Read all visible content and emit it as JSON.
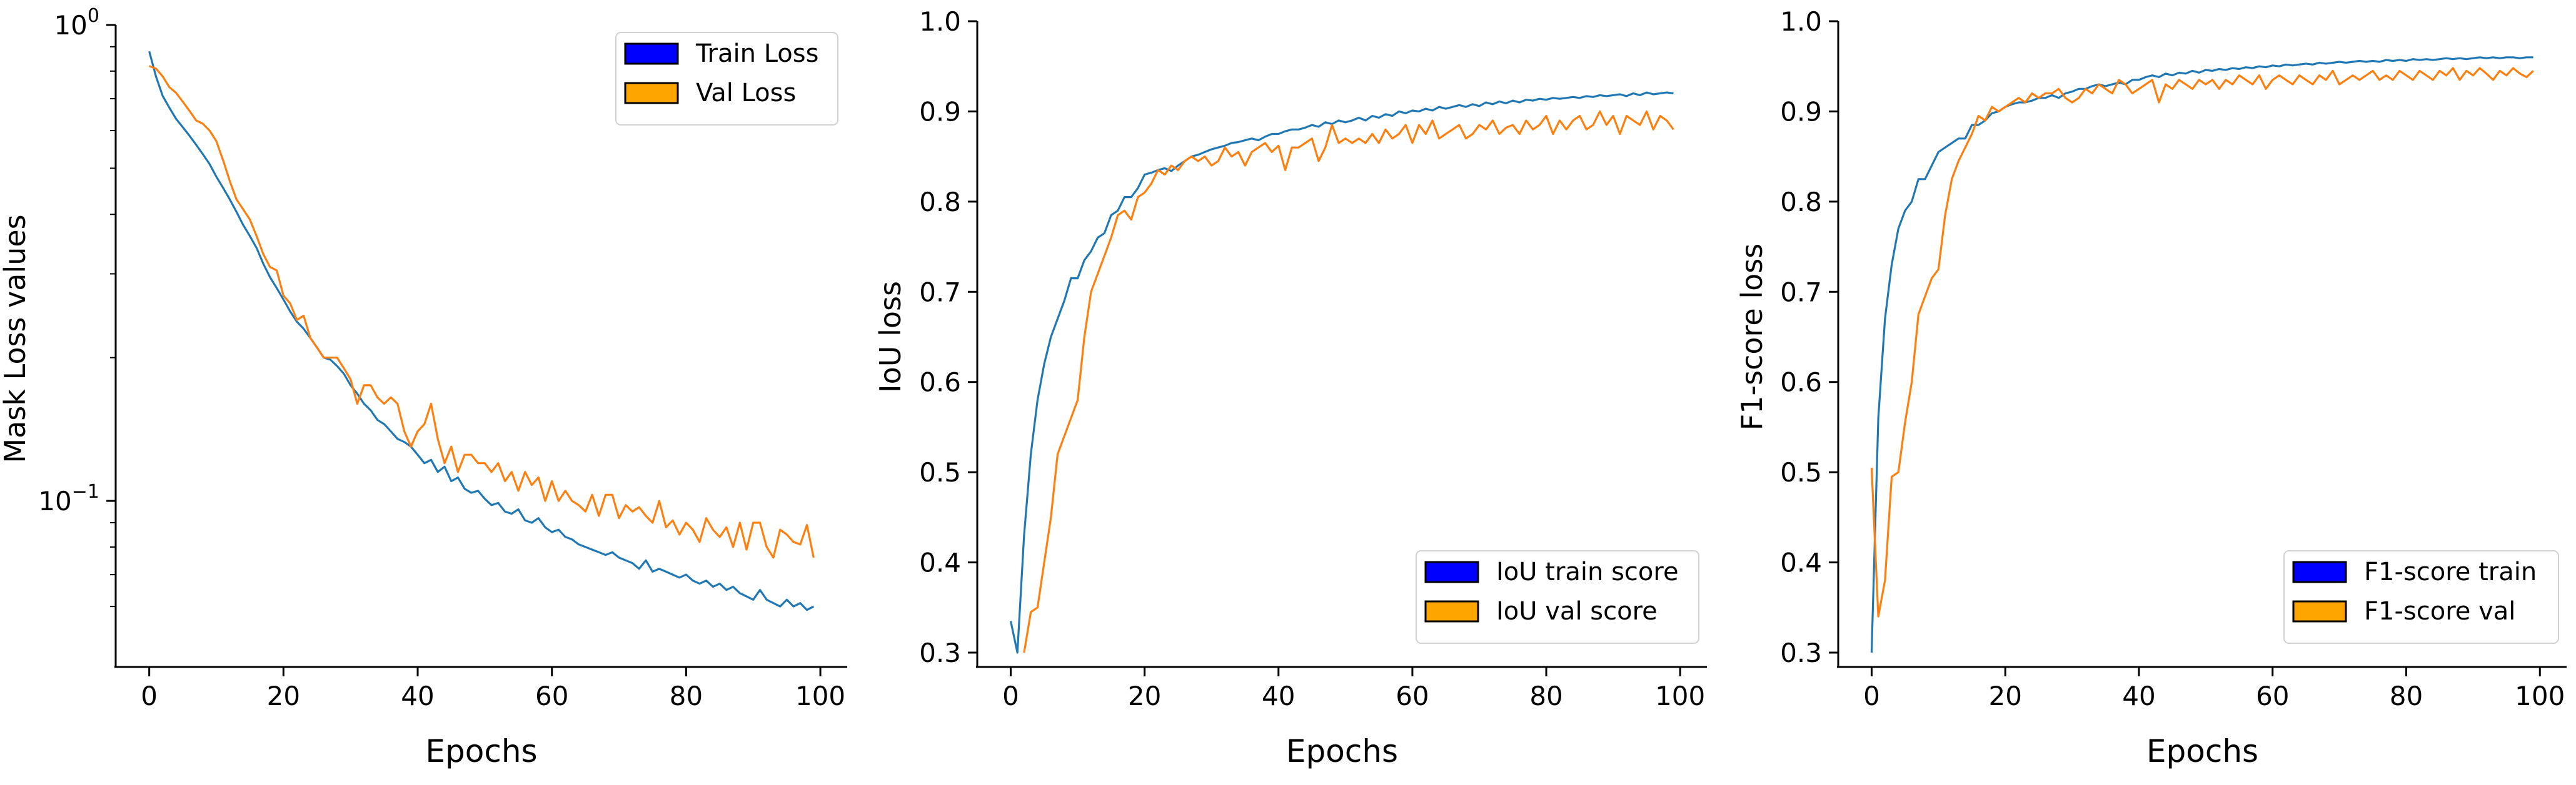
{
  "chart_data": [
    {
      "type": "line",
      "yscale": "log",
      "xlabel": "Epochs",
      "ylabel": "Mask Loss values",
      "xlim": [
        -5,
        104
      ],
      "ylim": [
        0.048,
        1.0
      ],
      "xticks": [
        0,
        20,
        40,
        60,
        80,
        100
      ],
      "xtick_labels": [
        "0",
        "20",
        "40",
        "60",
        "80",
        "100"
      ],
      "yticks": [
        1.0,
        0.1
      ],
      "ytick_labels": [
        {
          "base": "10",
          "exp": "0"
        },
        {
          "base": "10",
          "exp": "−1"
        }
      ],
      "grid": false,
      "legend": {
        "position": "top-right"
      },
      "series": [
        {
          "name": "Train Loss",
          "color": "#1f77b4",
          "legend_color": "#0000ff",
          "x_start": 0,
          "values": [
            0.88,
            0.78,
            0.71,
            0.67,
            0.635,
            0.61,
            0.585,
            0.56,
            0.535,
            0.51,
            0.48,
            0.455,
            0.43,
            0.405,
            0.38,
            0.36,
            0.34,
            0.315,
            0.295,
            0.28,
            0.265,
            0.25,
            0.238,
            0.23,
            0.22,
            0.21,
            0.2,
            0.198,
            0.192,
            0.185,
            0.175,
            0.168,
            0.16,
            0.155,
            0.148,
            0.145,
            0.14,
            0.135,
            0.133,
            0.13,
            0.125,
            0.12,
            0.122,
            0.115,
            0.118,
            0.11,
            0.112,
            0.106,
            0.104,
            0.105,
            0.101,
            0.098,
            0.099,
            0.095,
            0.094,
            0.096,
            0.091,
            0.09,
            0.092,
            0.088,
            0.086,
            0.087,
            0.084,
            0.083,
            0.081,
            0.08,
            0.079,
            0.078,
            0.077,
            0.078,
            0.076,
            0.075,
            0.074,
            0.072,
            0.075,
            0.071,
            0.072,
            0.071,
            0.07,
            0.069,
            0.07,
            0.068,
            0.067,
            0.068,
            0.066,
            0.067,
            0.065,
            0.066,
            0.064,
            0.063,
            0.062,
            0.065,
            0.062,
            0.061,
            0.06,
            0.062,
            0.06,
            0.061,
            0.059,
            0.06
          ]
        },
        {
          "name": "Val Loss",
          "color": "#ff7f0e",
          "legend_color": "#ffa500",
          "x_start": 0,
          "values": [
            0.82,
            0.81,
            0.78,
            0.74,
            0.72,
            0.69,
            0.66,
            0.63,
            0.62,
            0.6,
            0.57,
            0.52,
            0.47,
            0.43,
            0.41,
            0.39,
            0.36,
            0.33,
            0.31,
            0.305,
            0.27,
            0.26,
            0.24,
            0.245,
            0.22,
            0.21,
            0.2,
            0.2,
            0.2,
            0.19,
            0.18,
            0.16,
            0.175,
            0.175,
            0.165,
            0.16,
            0.165,
            0.16,
            0.14,
            0.13,
            0.14,
            0.145,
            0.16,
            0.135,
            0.12,
            0.13,
            0.115,
            0.125,
            0.125,
            0.12,
            0.12,
            0.115,
            0.12,
            0.11,
            0.115,
            0.105,
            0.115,
            0.108,
            0.112,
            0.1,
            0.11,
            0.1,
            0.105,
            0.1,
            0.098,
            0.095,
            0.103,
            0.093,
            0.103,
            0.103,
            0.092,
            0.098,
            0.095,
            0.097,
            0.093,
            0.09,
            0.1,
            0.088,
            0.091,
            0.085,
            0.09,
            0.087,
            0.082,
            0.092,
            0.087,
            0.084,
            0.088,
            0.08,
            0.09,
            0.079,
            0.09,
            0.09,
            0.08,
            0.076,
            0.087,
            0.085,
            0.082,
            0.081,
            0.089,
            0.076
          ]
        }
      ]
    },
    {
      "type": "line",
      "xlabel": "Epochs",
      "ylabel": "IoU loss",
      "xlim": [
        -5,
        104
      ],
      "ylim": [
        0.3,
        1.0
      ],
      "xticks": [
        0,
        20,
        40,
        60,
        80,
        100
      ],
      "xtick_labels": [
        "0",
        "20",
        "40",
        "60",
        "80",
        "100"
      ],
      "yticks": [
        0.3,
        0.4,
        0.5,
        0.6,
        0.7,
        0.8,
        0.9,
        1.0
      ],
      "ytick_labels": [
        "0.3",
        "0.4",
        "0.5",
        "0.6",
        "0.7",
        "0.8",
        "0.9",
        "1.0"
      ],
      "grid": false,
      "legend": {
        "position": "bottom-right"
      },
      "series": [
        {
          "name": "IoU train score",
          "color": "#1f77b4",
          "legend_color": "#0000ff",
          "x_start": 0,
          "values": [
            0.335,
            0.3,
            0.43,
            0.52,
            0.58,
            0.62,
            0.65,
            0.67,
            0.69,
            0.715,
            0.715,
            0.735,
            0.745,
            0.76,
            0.765,
            0.785,
            0.79,
            0.805,
            0.805,
            0.815,
            0.83,
            0.832,
            0.835,
            0.837,
            0.834,
            0.84,
            0.845,
            0.85,
            0.852,
            0.855,
            0.858,
            0.86,
            0.862,
            0.865,
            0.866,
            0.868,
            0.87,
            0.868,
            0.872,
            0.875,
            0.875,
            0.878,
            0.88,
            0.88,
            0.882,
            0.885,
            0.883,
            0.888,
            0.886,
            0.89,
            0.888,
            0.89,
            0.893,
            0.89,
            0.895,
            0.893,
            0.897,
            0.895,
            0.9,
            0.898,
            0.901,
            0.9,
            0.903,
            0.901,
            0.905,
            0.903,
            0.905,
            0.907,
            0.905,
            0.908,
            0.906,
            0.91,
            0.908,
            0.911,
            0.909,
            0.912,
            0.91,
            0.913,
            0.912,
            0.914,
            0.913,
            0.915,
            0.914,
            0.915,
            0.916,
            0.915,
            0.917,
            0.916,
            0.918,
            0.917,
            0.918,
            0.919,
            0.917,
            0.92,
            0.918,
            0.921,
            0.919,
            0.92,
            0.921,
            0.92
          ]
        },
        {
          "name": "IoU val score",
          "color": "#ff7f0e",
          "legend_color": "#ffa500",
          "x_start": 2,
          "values": [
            0.3,
            0.345,
            0.35,
            0.4,
            0.45,
            0.52,
            0.54,
            0.56,
            0.58,
            0.65,
            0.7,
            0.72,
            0.74,
            0.76,
            0.785,
            0.79,
            0.78,
            0.805,
            0.81,
            0.82,
            0.835,
            0.83,
            0.84,
            0.835,
            0.845,
            0.85,
            0.845,
            0.85,
            0.84,
            0.845,
            0.86,
            0.85,
            0.855,
            0.84,
            0.855,
            0.86,
            0.865,
            0.855,
            0.862,
            0.835,
            0.86,
            0.86,
            0.865,
            0.87,
            0.845,
            0.86,
            0.885,
            0.865,
            0.87,
            0.865,
            0.87,
            0.865,
            0.875,
            0.865,
            0.88,
            0.87,
            0.875,
            0.885,
            0.865,
            0.885,
            0.875,
            0.89,
            0.87,
            0.875,
            0.88,
            0.885,
            0.87,
            0.875,
            0.885,
            0.88,
            0.89,
            0.875,
            0.882,
            0.885,
            0.875,
            0.89,
            0.88,
            0.885,
            0.895,
            0.875,
            0.89,
            0.88,
            0.89,
            0.895,
            0.88,
            0.885,
            0.9,
            0.885,
            0.895,
            0.875,
            0.895,
            0.89,
            0.885,
            0.9,
            0.88,
            0.895,
            0.89,
            0.88
          ]
        }
      ]
    },
    {
      "type": "line",
      "xlabel": "Epochs",
      "ylabel": "F1-score loss",
      "xlim": [
        -5,
        104
      ],
      "ylim": [
        0.3,
        1.0
      ],
      "xticks": [
        0,
        20,
        40,
        60,
        80,
        100
      ],
      "xtick_labels": [
        "0",
        "20",
        "40",
        "60",
        "80",
        "100"
      ],
      "yticks": [
        0.3,
        0.4,
        0.5,
        0.6,
        0.7,
        0.8,
        0.9,
        1.0
      ],
      "ytick_labels": [
        "0.3",
        "0.4",
        "0.5",
        "0.6",
        "0.7",
        "0.8",
        "0.9",
        "1.0"
      ],
      "grid": false,
      "legend": {
        "position": "bottom-right"
      },
      "series": [
        {
          "name": "F1-score train",
          "color": "#1f77b4",
          "legend_color": "#0000ff",
          "x_start": 0,
          "values": [
            0.3,
            0.56,
            0.67,
            0.73,
            0.77,
            0.79,
            0.8,
            0.825,
            0.825,
            0.84,
            0.855,
            0.86,
            0.865,
            0.87,
            0.87,
            0.885,
            0.885,
            0.89,
            0.898,
            0.9,
            0.905,
            0.908,
            0.91,
            0.91,
            0.912,
            0.915,
            0.915,
            0.918,
            0.915,
            0.92,
            0.922,
            0.925,
            0.925,
            0.928,
            0.93,
            0.928,
            0.93,
            0.932,
            0.93,
            0.935,
            0.935,
            0.938,
            0.94,
            0.938,
            0.942,
            0.94,
            0.943,
            0.942,
            0.945,
            0.943,
            0.946,
            0.945,
            0.947,
            0.946,
            0.948,
            0.947,
            0.949,
            0.948,
            0.95,
            0.949,
            0.951,
            0.95,
            0.952,
            0.951,
            0.952,
            0.953,
            0.952,
            0.954,
            0.953,
            0.954,
            0.955,
            0.954,
            0.955,
            0.956,
            0.955,
            0.956,
            0.955,
            0.957,
            0.956,
            0.957,
            0.956,
            0.958,
            0.957,
            0.958,
            0.957,
            0.958,
            0.959,
            0.958,
            0.959,
            0.958,
            0.959,
            0.96,
            0.959,
            0.96,
            0.959,
            0.96,
            0.96,
            0.959,
            0.96,
            0.96
          ]
        },
        {
          "name": "F1-score val",
          "color": "#ff7f0e",
          "legend_color": "#ffa500",
          "x_start": 0,
          "values": [
            0.505,
            0.34,
            0.38,
            0.495,
            0.5,
            0.555,
            0.6,
            0.675,
            0.695,
            0.715,
            0.725,
            0.785,
            0.825,
            0.845,
            0.86,
            0.875,
            0.895,
            0.89,
            0.905,
            0.9,
            0.905,
            0.91,
            0.915,
            0.91,
            0.92,
            0.915,
            0.92,
            0.92,
            0.925,
            0.915,
            0.91,
            0.915,
            0.925,
            0.92,
            0.93,
            0.925,
            0.92,
            0.935,
            0.93,
            0.92,
            0.925,
            0.93,
            0.935,
            0.91,
            0.93,
            0.925,
            0.935,
            0.93,
            0.925,
            0.935,
            0.93,
            0.935,
            0.925,
            0.935,
            0.93,
            0.94,
            0.935,
            0.93,
            0.94,
            0.925,
            0.935,
            0.94,
            0.935,
            0.93,
            0.94,
            0.935,
            0.93,
            0.94,
            0.935,
            0.945,
            0.93,
            0.935,
            0.94,
            0.935,
            0.94,
            0.945,
            0.935,
            0.94,
            0.935,
            0.945,
            0.94,
            0.935,
            0.945,
            0.94,
            0.935,
            0.945,
            0.94,
            0.948,
            0.935,
            0.945,
            0.94,
            0.948,
            0.942,
            0.935,
            0.945,
            0.94,
            0.948,
            0.942,
            0.938,
            0.945
          ]
        }
      ]
    }
  ]
}
